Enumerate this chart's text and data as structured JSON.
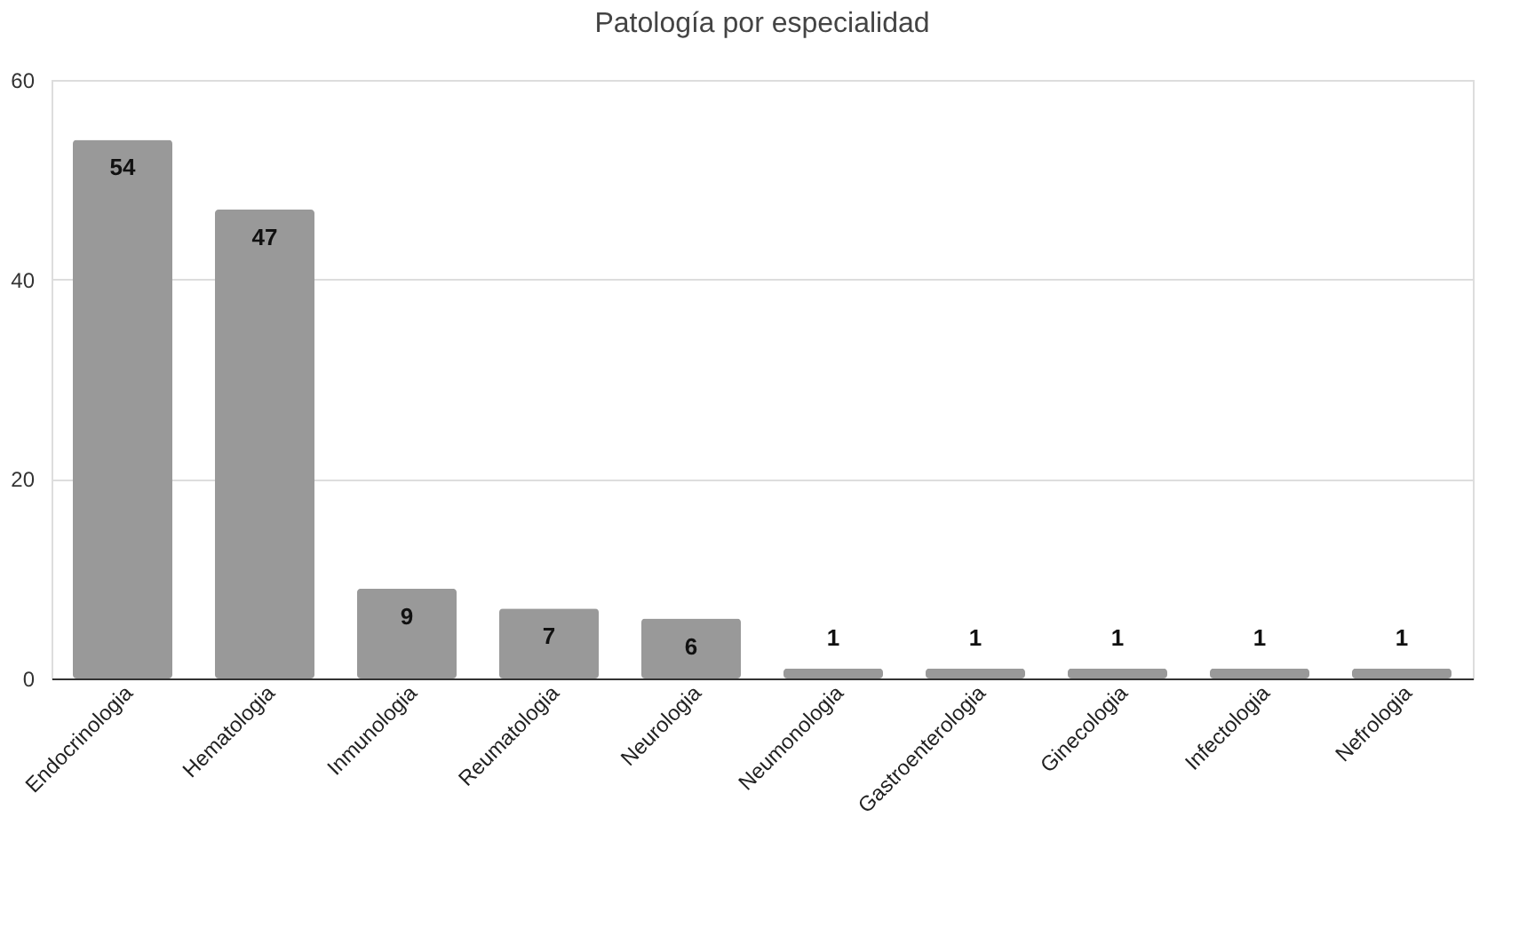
{
  "chart_data": {
    "type": "bar",
    "title": "Patología por especialidad",
    "categories": [
      "Endocrinologia",
      "Hematologia",
      "Inmunologia",
      "Reumatologia",
      "Neurologia",
      "Neumonologia",
      "Gastroenterologia",
      "Ginecologia",
      "Infectologia",
      "Nefrologia"
    ],
    "values": [
      54,
      47,
      9,
      7,
      6,
      1,
      1,
      1,
      1,
      1
    ],
    "color": "#999999",
    "ylim": [
      0,
      60
    ],
    "yticks": [
      0,
      20,
      40,
      60
    ],
    "grid": "y",
    "data_labels": true
  }
}
